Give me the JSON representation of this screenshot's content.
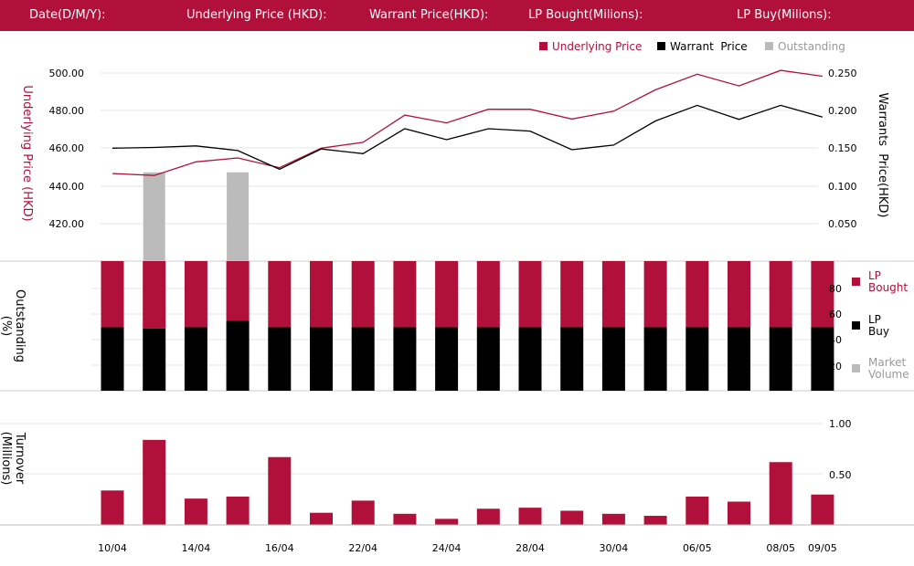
{
  "header": {
    "date_label": "Date(D/M/Y):",
    "underlying_label": "Underlying Price (HKD):",
    "warrant_label": "Warrant  Price(HKD):",
    "lp_bought_label": "LP Bought(Milions):",
    "lp_buy_label": "LP Buy(Milions):"
  },
  "colors": {
    "underlying": "#b0103a",
    "warrant": "#000000",
    "outstanding": "#bbbbbb",
    "header_bg": "#b0103a"
  },
  "chart_data": [
    {
      "type": "line",
      "legend": [
        "Underlying Price",
        "Warrant  Price",
        "Outstanding"
      ],
      "legend_placement": "top-right",
      "ylabel_left": "Underlying Price (HKD)",
      "ylabel_right": "Warrants  Price(HKD)",
      "yticks_left": [
        "500.00",
        "480.00",
        "460.00",
        "440.00",
        "420.00"
      ],
      "yticks_right": [
        "0.250",
        "0.200",
        "0.150",
        "0.100",
        "0.050"
      ],
      "ylim_left": [
        400,
        506
      ],
      "ylim_right": [
        0,
        0.265
      ],
      "grid": true,
      "series": [
        {
          "name": "Underlying Price",
          "axis": "left",
          "values": [
            445,
            444,
            451,
            453,
            448,
            458,
            461,
            475,
            471,
            478,
            478,
            473,
            477,
            488,
            496,
            490,
            498,
            495
          ]
        },
        {
          "name": "Warrant  Price",
          "axis": "right",
          "values": [
            0.145,
            0.146,
            0.148,
            0.142,
            0.118,
            0.144,
            0.138,
            0.17,
            0.156,
            0.17,
            0.167,
            0.143,
            0.149,
            0.18,
            0.2,
            0.182,
            0.2,
            0.185
          ]
        },
        {
          "name": "Outstanding",
          "axis": "right",
          "type": "bar",
          "values": [
            null,
            0.114,
            null,
            0.114,
            null,
            null,
            null,
            null,
            null,
            null,
            null,
            null,
            null,
            null,
            null,
            null,
            null,
            null
          ]
        }
      ]
    },
    {
      "type": "bar",
      "stacked": true,
      "ylabel": "Outstanding (%)",
      "yticks": [
        "80",
        "60",
        "40",
        "20"
      ],
      "ylim": [
        0,
        100
      ],
      "legend": [
        "LP Bought",
        "LP Buy",
        "Market Volume"
      ],
      "series": [
        {
          "name": "LP Buy",
          "values": [
            49,
            48,
            49,
            54,
            49,
            49,
            49,
            49,
            49,
            49,
            49,
            49,
            49,
            49,
            49,
            49,
            49,
            49
          ]
        },
        {
          "name": "LP Bought",
          "values": [
            51,
            52,
            51,
            46,
            51,
            51,
            51,
            51,
            51,
            51,
            51,
            51,
            51,
            51,
            51,
            51,
            51,
            51
          ]
        }
      ]
    },
    {
      "type": "bar",
      "ylabel": "Turnover (Millions)",
      "yticks": [
        "1.00",
        "0.50"
      ],
      "ylim": [
        0,
        1.1
      ],
      "values": [
        0.34,
        0.84,
        0.26,
        0.28,
        0.67,
        0.12,
        0.24,
        0.11,
        0.06,
        0.16,
        0.17,
        0.14,
        0.11,
        0.09,
        0.28,
        0.23,
        0.62,
        0.3
      ],
      "xtick_labels": [
        "10/04",
        "14/04",
        "16/04",
        "22/04",
        "24/04",
        "28/04",
        "30/04",
        "06/05",
        "08/05",
        "09/05"
      ],
      "xtick_positions": [
        0,
        2,
        4,
        6,
        8,
        10,
        12,
        14,
        16,
        17
      ]
    }
  ]
}
